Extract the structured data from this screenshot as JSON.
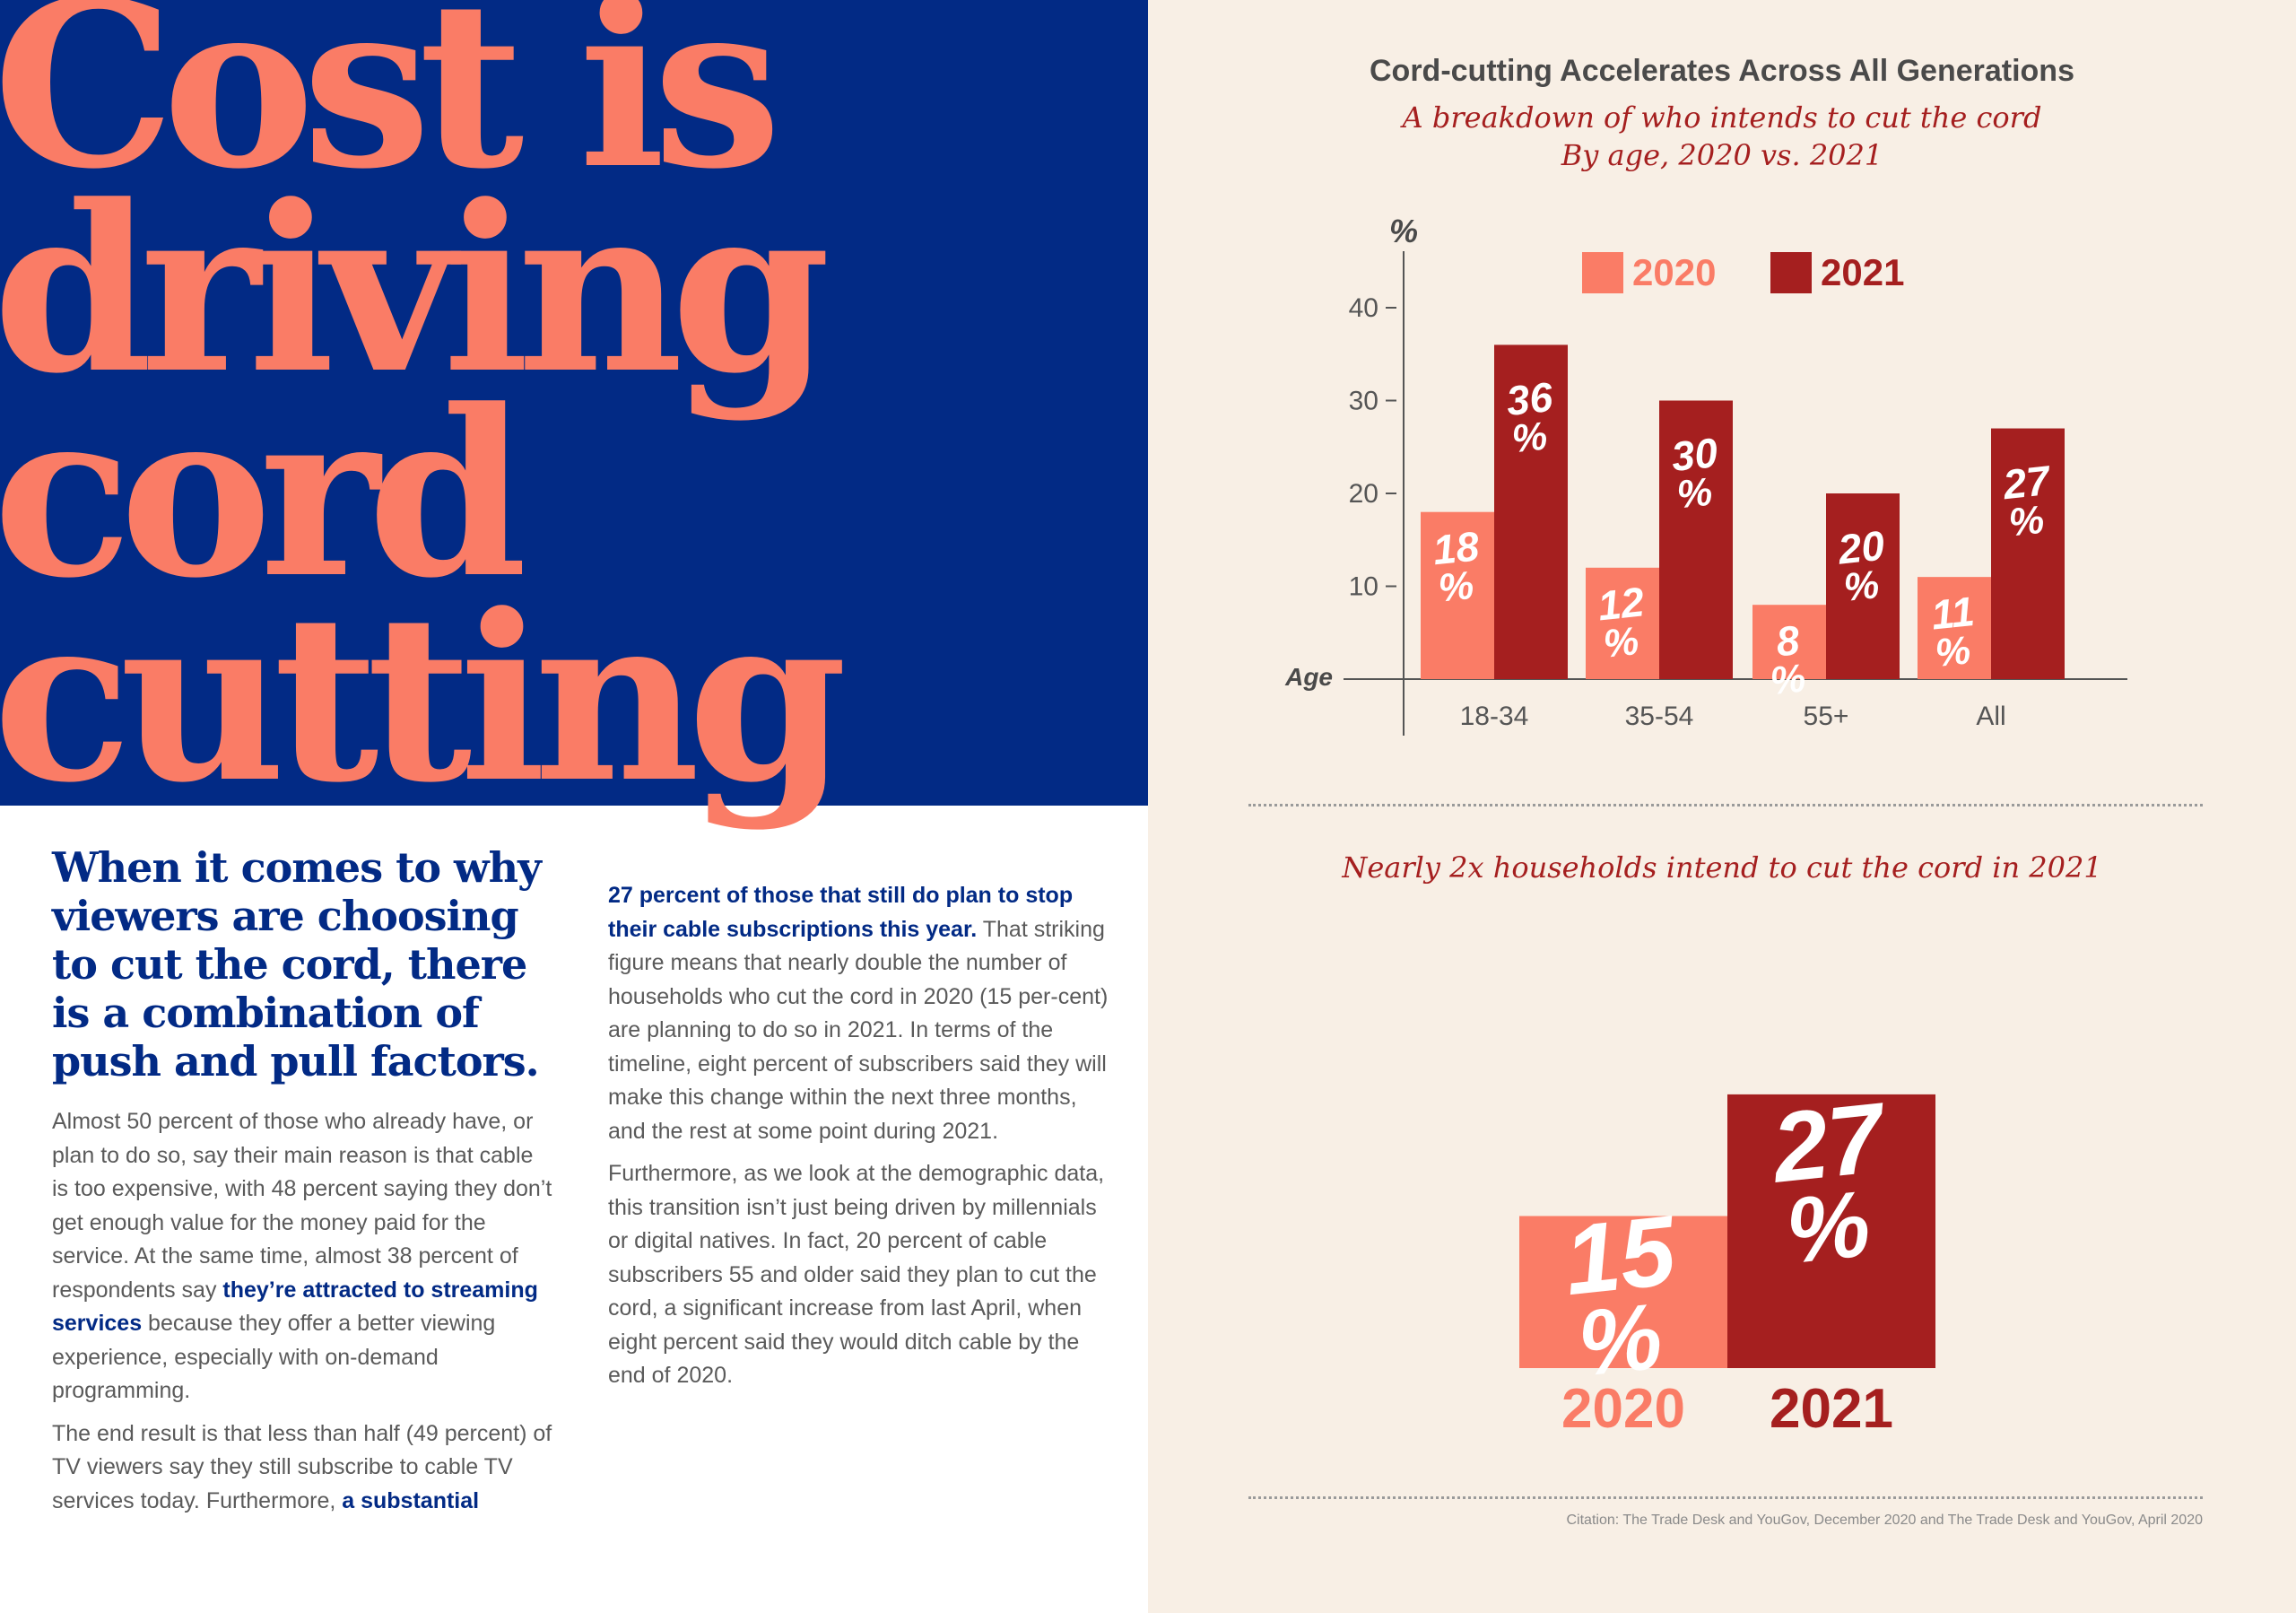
{
  "headline": {
    "lines": [
      "Cost is",
      "driving",
      "cord",
      "cutting"
    ]
  },
  "article": {
    "subhead": "When it comes to why viewers are choosing to cut the cord, there is a combination of push and pull factors.",
    "left_p1_a": "Almost 50 percent of those who already have, or plan to do so, say their main reason is that cable is too expensive, with 48 percent saying they don’t get enough value for the money paid for the service. At the same time, almost 38 percent of respondents say ",
    "left_p1_hl": "they’re attracted to streaming services",
    "left_p1_b": " because they offer a better viewing experience, especially with on-demand programming.",
    "left_p2_a": "The end result is that less than half (49 percent) of TV viewers say they still subscribe to cable TV services today. Furthermore, ",
    "left_p2_hl": "a substantial",
    "right_p1_hl": "27 percent of those that still do plan to stop their cable subscriptions this year.",
    "right_p1_b": " That striking figure means that nearly double the number of households who cut the cord in 2020 (15 per-cent) are planning to do so in 2021. In terms of the timeline, eight percent of subscribers said they will make this change within the next three months, and the rest at some point during 2021.",
    "right_p2": "Furthermore, as we look at the demographic data, this transition isn’t just being driven by millennials or digital natives. In fact, 20 percent of cable subscribers 55 and older said they plan to cut the cord, a significant increase from last April, when eight percent said they would ditch cable by the end of 2020."
  },
  "citation": "Citation: The Trade Desk and YouGov, December 2020 and The Trade Desk and YouGov, April 2020",
  "colors": {
    "color_2020": "#fa7c66",
    "color_2021": "#a51f1f",
    "blue": "#022a85",
    "axis": "#555555"
  },
  "chart_data": [
    {
      "type": "bar",
      "title": "Cord-cutting Accelerates Across All Generations",
      "subtitle_1": "A breakdown of who intends to cut the cord",
      "subtitle_2": "By age, 2020 vs. 2021",
      "xlabel": "Age",
      "ylabel": "%",
      "categories": [
        "18-34",
        "35-54",
        "55+",
        "All"
      ],
      "series": [
        {
          "name": "2020",
          "values": [
            18,
            12,
            8,
            11
          ]
        },
        {
          "name": "2021",
          "values": [
            36,
            30,
            20,
            27
          ]
        }
      ],
      "data_label_suffix": "%",
      "yticks": [
        10,
        20,
        30,
        40
      ],
      "ylim": [
        0,
        45
      ],
      "legend": "top-center"
    },
    {
      "type": "bar",
      "title": "Nearly 2x households intend to cut the cord in 2021",
      "categories": [
        "2020",
        "2021"
      ],
      "values": [
        15,
        27
      ],
      "data_label_suffix": "%"
    }
  ]
}
